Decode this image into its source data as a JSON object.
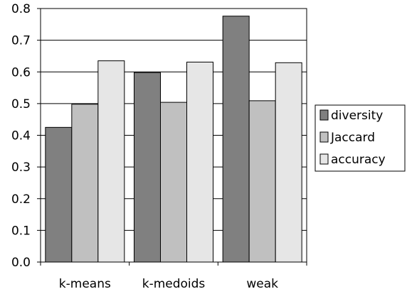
{
  "chart_data": {
    "type": "bar",
    "categories": [
      "k-means",
      "k-medoids",
      "weak"
    ],
    "series": [
      {
        "name": "diversity",
        "values": [
          0.425,
          0.598,
          0.776
        ],
        "color": "#808080"
      },
      {
        "name": "Jaccard",
        "values": [
          0.498,
          0.504,
          0.509
        ],
        "color": "#c0c0c0"
      },
      {
        "name": "accuracy",
        "values": [
          0.635,
          0.631,
          0.629
        ],
        "color": "#e6e6e6"
      }
    ],
    "ylim": [
      0,
      0.8
    ],
    "yticks": [
      "0.0",
      "0.1",
      "0.2",
      "0.3",
      "0.4",
      "0.5",
      "0.6",
      "0.7",
      "0.8"
    ],
    "grid": true,
    "legend_position": "right"
  }
}
